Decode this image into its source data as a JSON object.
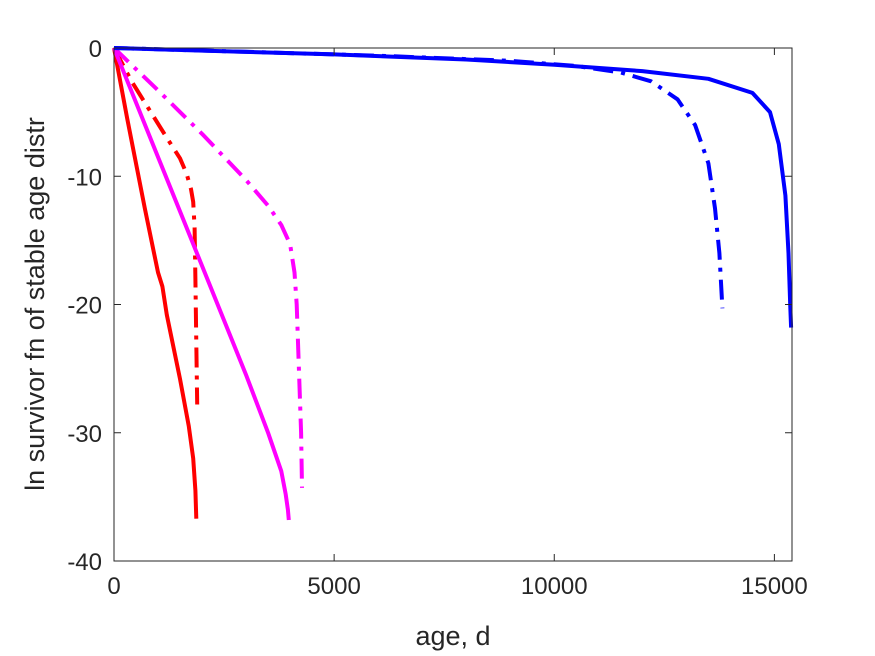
{
  "chart_data": {
    "type": "line",
    "title": "",
    "xlabel": "age, d",
    "ylabel": "ln survivor fn of stable age distr",
    "xlim": [
      0,
      15400
    ],
    "ylim": [
      -40,
      0
    ],
    "xticks": [
      0,
      5000,
      10000,
      15000
    ],
    "yticks": [
      0,
      -10,
      -20,
      -30,
      -40
    ],
    "x_tick_labels": [
      "0",
      "5000",
      "10000",
      "15000"
    ],
    "y_tick_labels": [
      "0",
      "-10",
      "-20",
      "-30",
      "-40"
    ],
    "grid": false,
    "box": true,
    "series": [
      {
        "color": "#ff0000",
        "style": "solid",
        "points": [
          [
            0,
            0
          ],
          [
            300,
            -5.5
          ],
          [
            700,
            -12.5
          ],
          [
            1000,
            -17.5
          ],
          [
            1100,
            -18.6
          ],
          [
            1200,
            -20.8
          ],
          [
            1500,
            -25.8
          ],
          [
            1700,
            -29.5
          ],
          [
            1800,
            -32
          ],
          [
            1850,
            -34.5
          ],
          [
            1870,
            -36.7
          ]
        ]
      },
      {
        "color": "#ff0000",
        "style": "dashdot",
        "points": [
          [
            0,
            0
          ],
          [
            400,
            -2.6
          ],
          [
            800,
            -4.8
          ],
          [
            1200,
            -7
          ],
          [
            1500,
            -8.6
          ],
          [
            1650,
            -9.8
          ],
          [
            1750,
            -11
          ],
          [
            1800,
            -12
          ],
          [
            1830,
            -14
          ],
          [
            1850,
            -18
          ],
          [
            1870,
            -23
          ],
          [
            1890,
            -27.8
          ]
        ]
      },
      {
        "color": "#ff00ff",
        "style": "solid",
        "points": [
          [
            0,
            0
          ],
          [
            1000,
            -8.5
          ],
          [
            2000,
            -17
          ],
          [
            3000,
            -25.5
          ],
          [
            3500,
            -30
          ],
          [
            3800,
            -33
          ],
          [
            3900,
            -34.8
          ],
          [
            3950,
            -36
          ],
          [
            3970,
            -36.8
          ]
        ]
      },
      {
        "color": "#ff00ff",
        "style": "dashdot",
        "points": [
          [
            0,
            0
          ],
          [
            1000,
            -3.3
          ],
          [
            2000,
            -6.7
          ],
          [
            3000,
            -10.3
          ],
          [
            3500,
            -12.3
          ],
          [
            3800,
            -13.8
          ],
          [
            4000,
            -15.3
          ],
          [
            4100,
            -17.5
          ],
          [
            4150,
            -20
          ],
          [
            4200,
            -25
          ],
          [
            4250,
            -30
          ],
          [
            4270,
            -34.3
          ]
        ]
      },
      {
        "color": "#0000ff",
        "style": "solid",
        "points": [
          [
            0,
            0
          ],
          [
            2000,
            -0.2
          ],
          [
            5000,
            -0.5
          ],
          [
            8000,
            -0.9
          ],
          [
            10000,
            -1.3
          ],
          [
            12000,
            -1.8
          ],
          [
            13500,
            -2.4
          ],
          [
            14500,
            -3.5
          ],
          [
            14900,
            -5
          ],
          [
            15100,
            -7.5
          ],
          [
            15250,
            -11.5
          ],
          [
            15320,
            -16
          ],
          [
            15360,
            -20
          ],
          [
            15380,
            -21.8
          ]
        ]
      },
      {
        "color": "#0000ff",
        "style": "dashdot",
        "points": [
          [
            0,
            0
          ],
          [
            3000,
            -0.3
          ],
          [
            6000,
            -0.6
          ],
          [
            9000,
            -1.0
          ],
          [
            10500,
            -1.4
          ],
          [
            11500,
            -1.9
          ],
          [
            12200,
            -2.6
          ],
          [
            12800,
            -4
          ],
          [
            13200,
            -6
          ],
          [
            13500,
            -9
          ],
          [
            13650,
            -12.5
          ],
          [
            13750,
            -16
          ],
          [
            13820,
            -20.3
          ]
        ]
      }
    ]
  }
}
